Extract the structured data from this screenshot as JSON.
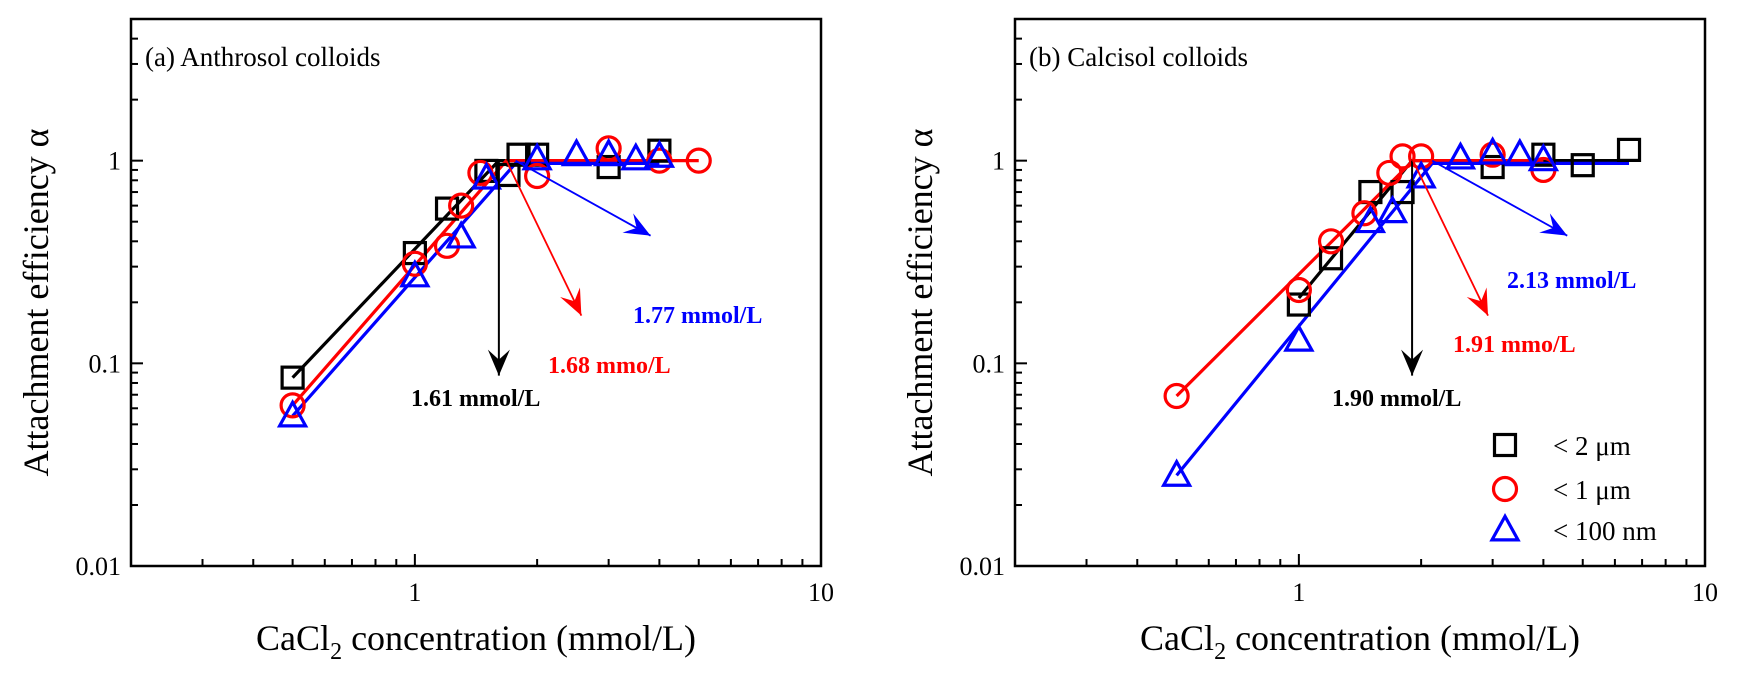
{
  "chart_data": [
    {
      "type": "scatter",
      "title": "(a) Anthrosol colloids",
      "xlabel": "CaCl2 concentration (mmol/L)",
      "xlabel_main": "CaCl",
      "xlabel_sub": "2",
      "xlabel_rest": " concentration (mmol/L)",
      "ylabel": "Attachment efficiency α",
      "xscale": "log",
      "yscale": "log",
      "xlim": [
        0.2,
        10
      ],
      "ylim": [
        0.01,
        5
      ],
      "xticks": [
        {
          "value": 1,
          "label": "1"
        },
        {
          "value": 10,
          "label": "10"
        }
      ],
      "yticks": [
        {
          "value": 0.01,
          "label": "0.01"
        },
        {
          "value": 0.1,
          "label": "0.1"
        },
        {
          "value": 1,
          "label": "1"
        }
      ],
      "grid": false,
      "legend": "none",
      "series": [
        {
          "name": "< 2 μm",
          "marker": "square",
          "color": "#000000",
          "points": [
            [
              0.5,
              0.085
            ],
            [
              1.0,
              0.35
            ],
            [
              1.2,
              0.58
            ],
            [
              1.5,
              0.89
            ],
            [
              1.7,
              0.85
            ],
            [
              1.8,
              1.07
            ],
            [
              2.0,
              1.07
            ],
            [
              3.0,
              0.93
            ],
            [
              4.0,
              1.12
            ]
          ],
          "fit": [
            [
              0.5,
              0.085
            ],
            [
              1.61,
              1.0
            ],
            [
              4.0,
              1.0
            ]
          ],
          "ccc": 1.61,
          "ccc_label": "1.61 mmol/L"
        },
        {
          "name": "< 1 μm",
          "marker": "circle",
          "color": "#ff0000",
          "points": [
            [
              0.5,
              0.062
            ],
            [
              1.0,
              0.31
            ],
            [
              1.2,
              0.38
            ],
            [
              1.3,
              0.6
            ],
            [
              1.45,
              0.87
            ],
            [
              2.0,
              0.84
            ],
            [
              3.0,
              1.15
            ],
            [
              4.0,
              1.0
            ],
            [
              5.0,
              1.0
            ]
          ],
          "fit": [
            [
              0.5,
              0.062
            ],
            [
              1.68,
              1.0
            ],
            [
              5.0,
              1.0
            ]
          ],
          "ccc": 1.68,
          "ccc_label": "1.68 mmo/L"
        },
        {
          "name": "< 100 nm",
          "marker": "triangle",
          "color": "#0000ff",
          "points": [
            [
              0.5,
              0.055
            ],
            [
              1.0,
              0.27
            ],
            [
              1.3,
              0.42
            ],
            [
              1.5,
              0.82
            ],
            [
              2.0,
              1.02
            ],
            [
              2.5,
              1.07
            ],
            [
              3.0,
              1.07
            ],
            [
              3.5,
              1.02
            ],
            [
              4.0,
              1.05
            ]
          ],
          "fit": [
            [
              0.5,
              0.055
            ],
            [
              1.77,
              0.97
            ],
            [
              4.0,
              0.97
            ]
          ],
          "ccc": 1.77,
          "ccc_label": "1.77 mmol/L"
        }
      ]
    },
    {
      "type": "scatter",
      "title": "(b) Calcisol colloids",
      "xlabel": "CaCl2 concentration (mmol/L)",
      "xlabel_main": "CaCl",
      "xlabel_sub": "2",
      "xlabel_rest": " concentration (mmol/L)",
      "ylabel": "Attachment efficiency α",
      "xscale": "log",
      "yscale": "log",
      "xlim": [
        0.2,
        10
      ],
      "ylim": [
        0.01,
        5
      ],
      "xticks": [
        {
          "value": 1,
          "label": "1"
        },
        {
          "value": 10,
          "label": "10"
        }
      ],
      "yticks": [
        {
          "value": 0.01,
          "label": "0.01"
        },
        {
          "value": 0.1,
          "label": "0.1"
        },
        {
          "value": 1,
          "label": "1"
        }
      ],
      "grid": false,
      "legend": "bottom-right",
      "series": [
        {
          "name": "< 2 μm",
          "marker": "square",
          "color": "#000000",
          "points": [
            [
              1.0,
              0.195
            ],
            [
              1.2,
              0.33
            ],
            [
              1.5,
              0.7
            ],
            [
              1.8,
              0.7
            ],
            [
              3.0,
              0.93
            ],
            [
              4.0,
              1.07
            ],
            [
              5.0,
              0.95
            ],
            [
              6.5,
              1.13
            ]
          ],
          "fit": [
            [
              1.0,
              0.21
            ],
            [
              1.9,
              1.0
            ],
            [
              6.5,
              1.0
            ]
          ],
          "ccc": 1.9,
          "ccc_label": "1.90 mmol/L"
        },
        {
          "name": "< 1 μm",
          "marker": "circle",
          "color": "#ff0000",
          "points": [
            [
              0.5,
              0.069
            ],
            [
              1.0,
              0.23
            ],
            [
              1.2,
              0.4
            ],
            [
              1.45,
              0.55
            ],
            [
              1.67,
              0.87
            ],
            [
              1.8,
              1.05
            ],
            [
              2.0,
              1.05
            ],
            [
              3.0,
              1.07
            ],
            [
              4.0,
              0.9
            ]
          ],
          "fit": [
            [
              0.5,
              0.069
            ],
            [
              1.91,
              1.0
            ],
            [
              4.0,
              1.0
            ]
          ],
          "ccc": 1.91,
          "ccc_label": "1.91 mmo/L"
        },
        {
          "name": "< 100 nm",
          "marker": "triangle",
          "color": "#0000ff",
          "points": [
            [
              0.5,
              0.028
            ],
            [
              1.0,
              0.13
            ],
            [
              1.5,
              0.5
            ],
            [
              1.7,
              0.56
            ],
            [
              2.0,
              0.83
            ],
            [
              2.5,
              1.03
            ],
            [
              3.0,
              1.09
            ],
            [
              3.5,
              1.07
            ],
            [
              4.0,
              1.01
            ]
          ],
          "fit": [
            [
              0.5,
              0.028
            ],
            [
              2.13,
              0.97
            ],
            [
              6.5,
              0.97
            ]
          ],
          "ccc": 2.13,
          "ccc_label": "2.13 mmol/L"
        }
      ]
    }
  ]
}
